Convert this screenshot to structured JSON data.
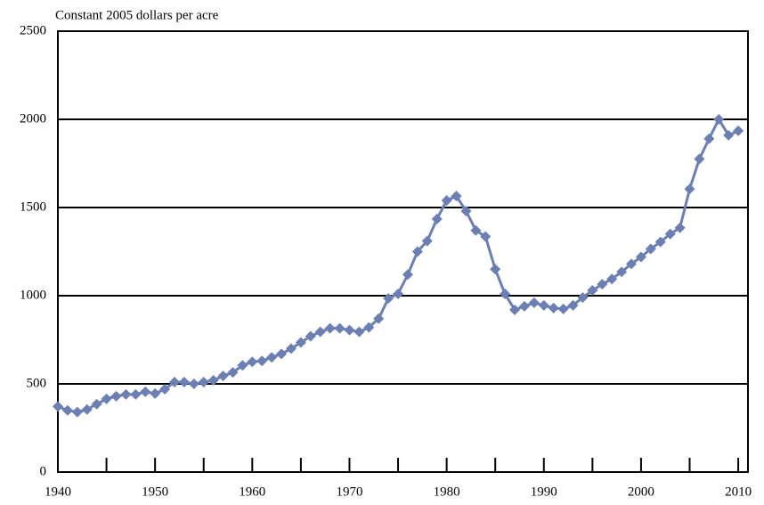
{
  "chart_data": {
    "type": "line",
    "y_axis_label": "Constant 2005 dollars per acre",
    "x": [
      1940,
      1941,
      1942,
      1943,
      1944,
      1945,
      1946,
      1947,
      1948,
      1949,
      1950,
      1951,
      1952,
      1953,
      1954,
      1955,
      1956,
      1957,
      1958,
      1959,
      1960,
      1961,
      1962,
      1963,
      1964,
      1965,
      1966,
      1967,
      1968,
      1969,
      1970,
      1971,
      1972,
      1973,
      1974,
      1975,
      1976,
      1977,
      1978,
      1979,
      1980,
      1981,
      1982,
      1983,
      1984,
      1985,
      1986,
      1987,
      1988,
      1989,
      1990,
      1991,
      1992,
      1993,
      1994,
      1995,
      1996,
      1997,
      1998,
      1999,
      2000,
      2001,
      2002,
      2003,
      2004,
      2005,
      2006,
      2007,
      2008,
      2009,
      2010
    ],
    "series": [
      {
        "color": "#6c7fb2",
        "values": [
          372,
          350,
          340,
          355,
          385,
          415,
          430,
          440,
          440,
          455,
          445,
          470,
          510,
          510,
          500,
          510,
          520,
          545,
          565,
          605,
          625,
          630,
          650,
          670,
          700,
          735,
          770,
          795,
          815,
          815,
          805,
          795,
          820,
          870,
          985,
          1010,
          1120,
          1250,
          1310,
          1435,
          1540,
          1565,
          1480,
          1370,
          1335,
          1150,
          1010,
          920,
          940,
          960,
          945,
          930,
          925,
          945,
          990,
          1030,
          1065,
          1095,
          1135,
          1180,
          1220,
          1265,
          1305,
          1350,
          1385,
          1605,
          1775,
          1890,
          2000,
          1910,
          1935
        ]
      }
    ],
    "xlim": [
      1940,
      2011
    ],
    "xticks": [
      1940,
      1950,
      1960,
      1970,
      1980,
      1990,
      2000,
      2010
    ],
    "xminorticks": [
      1945,
      1955,
      1965,
      1975,
      1985,
      1995,
      2005
    ],
    "ylim": [
      0,
      2500
    ],
    "yticks": [
      0,
      500,
      1000,
      1500,
      2000,
      2500
    ],
    "grid": true
  }
}
